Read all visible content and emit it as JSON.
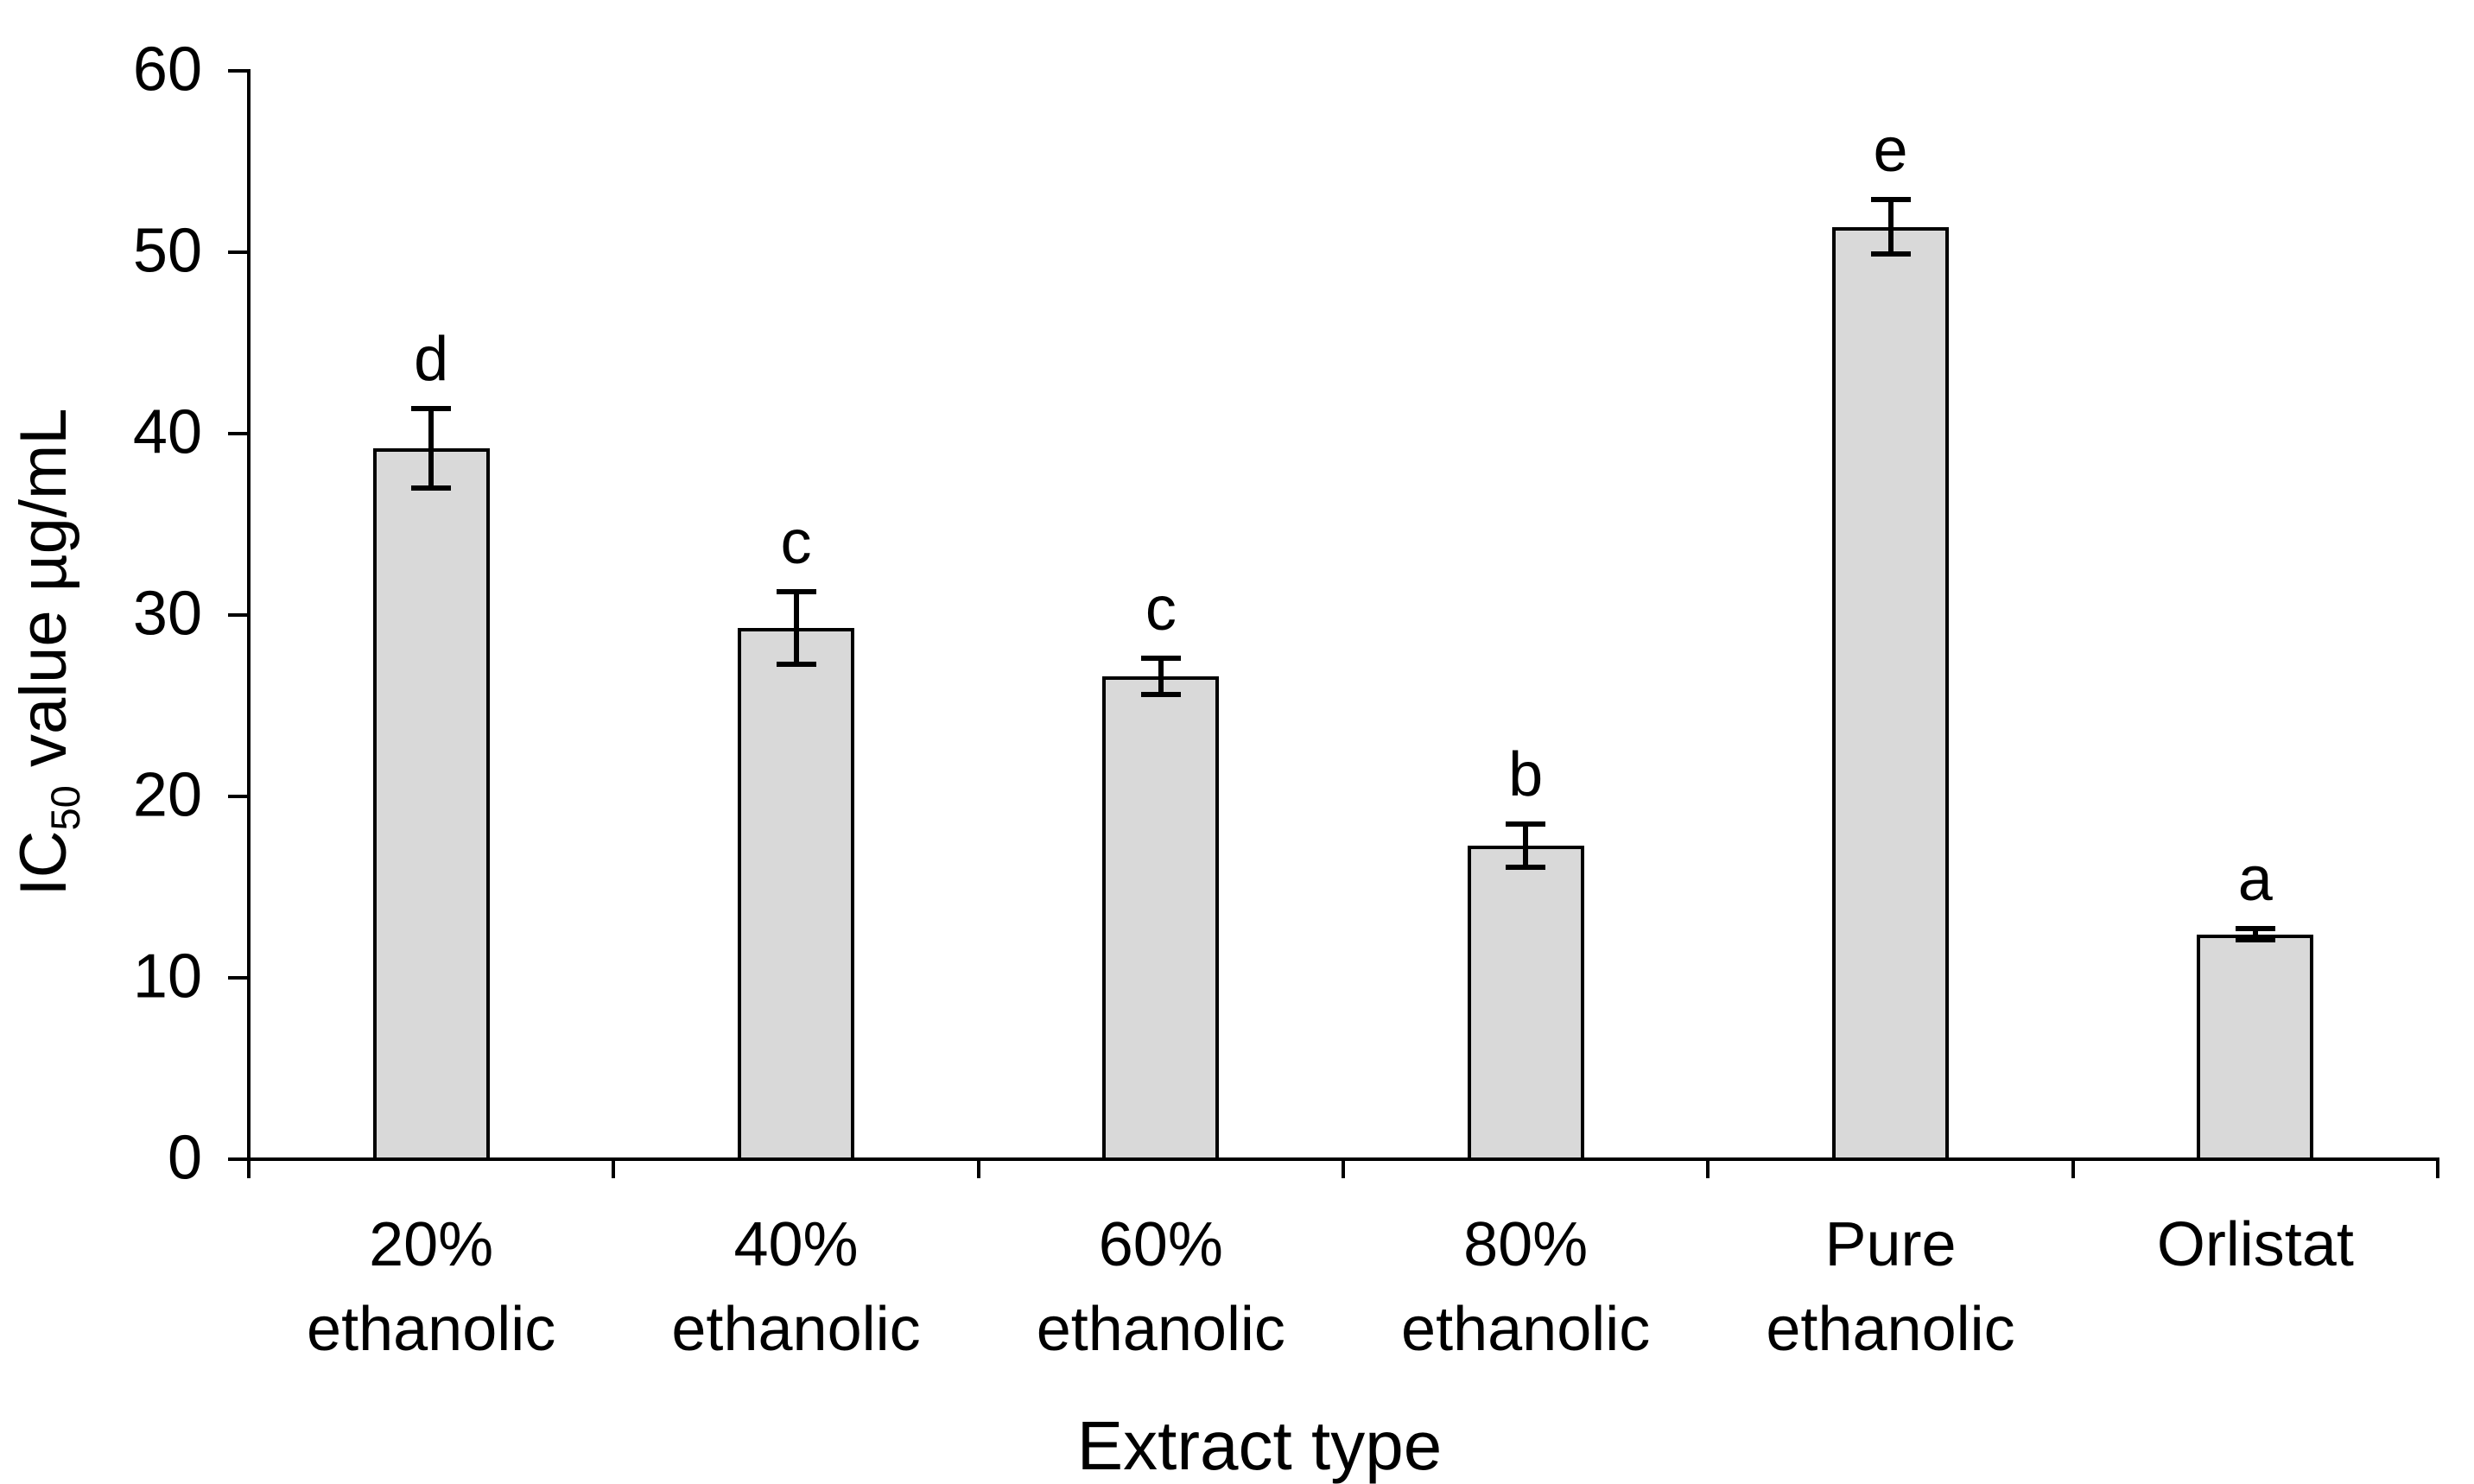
{
  "chart_data": {
    "type": "bar",
    "title": "",
    "xlabel": "Extract type",
    "ylabel": "IC50 value µg/mL",
    "ylabel_parts": {
      "prefix": "IC",
      "sub": "50",
      "suffix": " value µg/mL"
    },
    "categories": [
      "20% ethanolic",
      "40% ethanolic",
      "60% ethanolic",
      "80% ethanolic",
      "Pure ethanolic",
      "Orlistat"
    ],
    "category_lines": [
      [
        "20%",
        "ethanolic"
      ],
      [
        "40%",
        "ethanolic"
      ],
      [
        "60%",
        "ethanolic"
      ],
      [
        "80%",
        "ethanolic"
      ],
      [
        "Pure",
        "ethanolic"
      ],
      [
        "Orlistat"
      ]
    ],
    "values": [
      39.2,
      29.3,
      26.6,
      17.3,
      51.4,
      12.4
    ],
    "error_bars": [
      2.2,
      2.0,
      1.0,
      1.2,
      1.5,
      0.3
    ],
    "significance_letters": [
      "d",
      "c",
      "c",
      "b",
      "e",
      "a"
    ],
    "y_ticks": [
      0,
      10,
      20,
      30,
      40,
      50,
      60
    ],
    "ylim": [
      0,
      60
    ],
    "grid": false,
    "legend": "none",
    "colors": {
      "bar_fill": "#d9d9d9",
      "bar_border": "#000000",
      "axis": "#000000",
      "text": "#000000"
    }
  }
}
